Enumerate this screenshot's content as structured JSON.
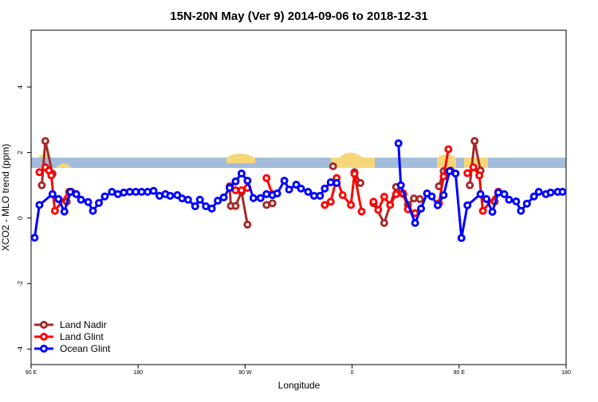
{
  "chart_data": {
    "type": "line",
    "title": "15N-20N May (Ver 9)   2014-09-06 to 2018-12-31",
    "x_label": "Longitude",
    "y_label": "XCO2 - MLO trend (ppm)",
    "xlim": [
      90,
      540
    ],
    "xticks": [
      {
        "value": 90,
        "label": "90 E"
      },
      180,
      {
        "value": 270,
        "label": "90 W"
      },
      {
        "value": 360,
        "label": "0"
      },
      {
        "value": 450,
        "label": "90 E"
      },
      {
        "value": 540,
        "label": "180"
      }
    ],
    "ylim": [
      -4.47,
      5.73
    ],
    "yticks": [
      -4,
      -2,
      0,
      2,
      4
    ],
    "legend": "bottom-left",
    "series": [
      {
        "name": "Land Nadir",
        "color": "#a52a2a",
        "x": [
          99,
          102,
          108,
          null,
          120,
          124,
          null,
          257,
          258,
          262,
          267,
          272,
          null,
          288,
          293,
          null,
          344,
          null,
          362,
          367,
          null,
          378,
          387,
          397,
          403,
          407,
          412,
          417,
          null,
          433,
          437,
          443,
          null,
          459,
          463,
          468,
          null,
          480,
          483
        ],
        "values": [
          1.0,
          2.35,
          1.35,
          null,
          0.5,
          0.8,
          null,
          0.97,
          0.37,
          0.37,
          0.8,
          -0.2,
          null,
          0.4,
          0.45,
          null,
          1.58,
          null,
          1.4,
          1.07,
          null,
          0.45,
          -0.15,
          0.95,
          0.73,
          0.4,
          0.6,
          0.58,
          null,
          0.97,
          1.43,
          1.45,
          null,
          1.0,
          2.35,
          1.45,
          null,
          0.5,
          0.8
        ]
      },
      {
        "name": "Land Glint",
        "color": "#ff0000",
        "x": [
          97,
          102,
          105,
          107,
          110,
          122,
          null,
          262,
          267,
          272,
          null,
          288,
          293,
          null,
          337,
          342,
          347,
          352,
          359,
          362,
          368,
          null,
          378,
          382,
          387,
          392,
          397,
          403,
          407,
          413,
          null,
          433,
          437,
          441,
          null,
          457,
          462,
          467,
          470,
          483
        ],
        "values": [
          1.4,
          1.55,
          1.45,
          1.3,
          0.22,
          0.8,
          null,
          0.85,
          0.85,
          0.92,
          null,
          1.22,
          0.73,
          null,
          0.4,
          0.5,
          1.22,
          0.7,
          0.4,
          1.35,
          0.2,
          null,
          0.5,
          0.25,
          0.65,
          0.4,
          0.73,
          0.75,
          0.27,
          0.15,
          null,
          0.45,
          1.27,
          2.1,
          null,
          1.37,
          1.55,
          1.3,
          0.22,
          0.8
        ]
      },
      {
        "name": "Ocean Glint",
        "color": "#0000ff",
        "x": [
          93,
          97,
          108,
          113,
          118,
          123,
          128,
          132,
          138,
          142,
          147,
          152,
          158,
          163,
          168,
          173,
          178,
          183,
          188,
          193,
          198,
          203,
          207,
          213,
          217,
          222,
          228,
          232,
          237,
          242,
          247,
          252,
          257,
          262,
          267,
          272,
          277,
          283,
          288,
          293,
          297,
          303,
          307,
          313,
          317,
          323,
          328,
          333,
          337,
          342,
          347,
          null,
          399,
          401,
          413,
          418,
          423,
          427,
          432,
          437,
          442,
          447,
          452,
          457,
          468,
          473,
          478,
          483,
          488,
          492,
          498,
          502,
          507,
          513,
          517,
          523,
          527,
          533,
          537
        ],
        "values": [
          -0.6,
          0.4,
          0.73,
          0.58,
          0.2,
          0.8,
          0.73,
          0.56,
          0.49,
          0.22,
          0.46,
          0.66,
          0.8,
          0.73,
          0.78,
          0.8,
          0.8,
          0.8,
          0.8,
          0.83,
          0.68,
          0.73,
          0.68,
          0.7,
          0.6,
          0.56,
          0.36,
          0.56,
          0.36,
          0.29,
          0.53,
          0.63,
          0.92,
          1.12,
          1.36,
          1.14,
          0.61,
          0.61,
          0.73,
          0.7,
          0.75,
          1.14,
          0.87,
          1.02,
          0.9,
          0.8,
          0.68,
          0.68,
          0.9,
          1.09,
          1.07,
          null,
          2.28,
          1.0,
          -0.15,
          0.29,
          0.75,
          0.66,
          0.39,
          0.7,
          1.43,
          1.36,
          -0.61,
          0.39,
          0.73,
          0.58,
          0.19,
          0.78,
          0.73,
          0.56,
          0.51,
          0.22,
          0.44,
          0.66,
          0.8,
          0.73,
          0.78,
          0.8,
          0.8
        ]
      }
    ]
  }
}
